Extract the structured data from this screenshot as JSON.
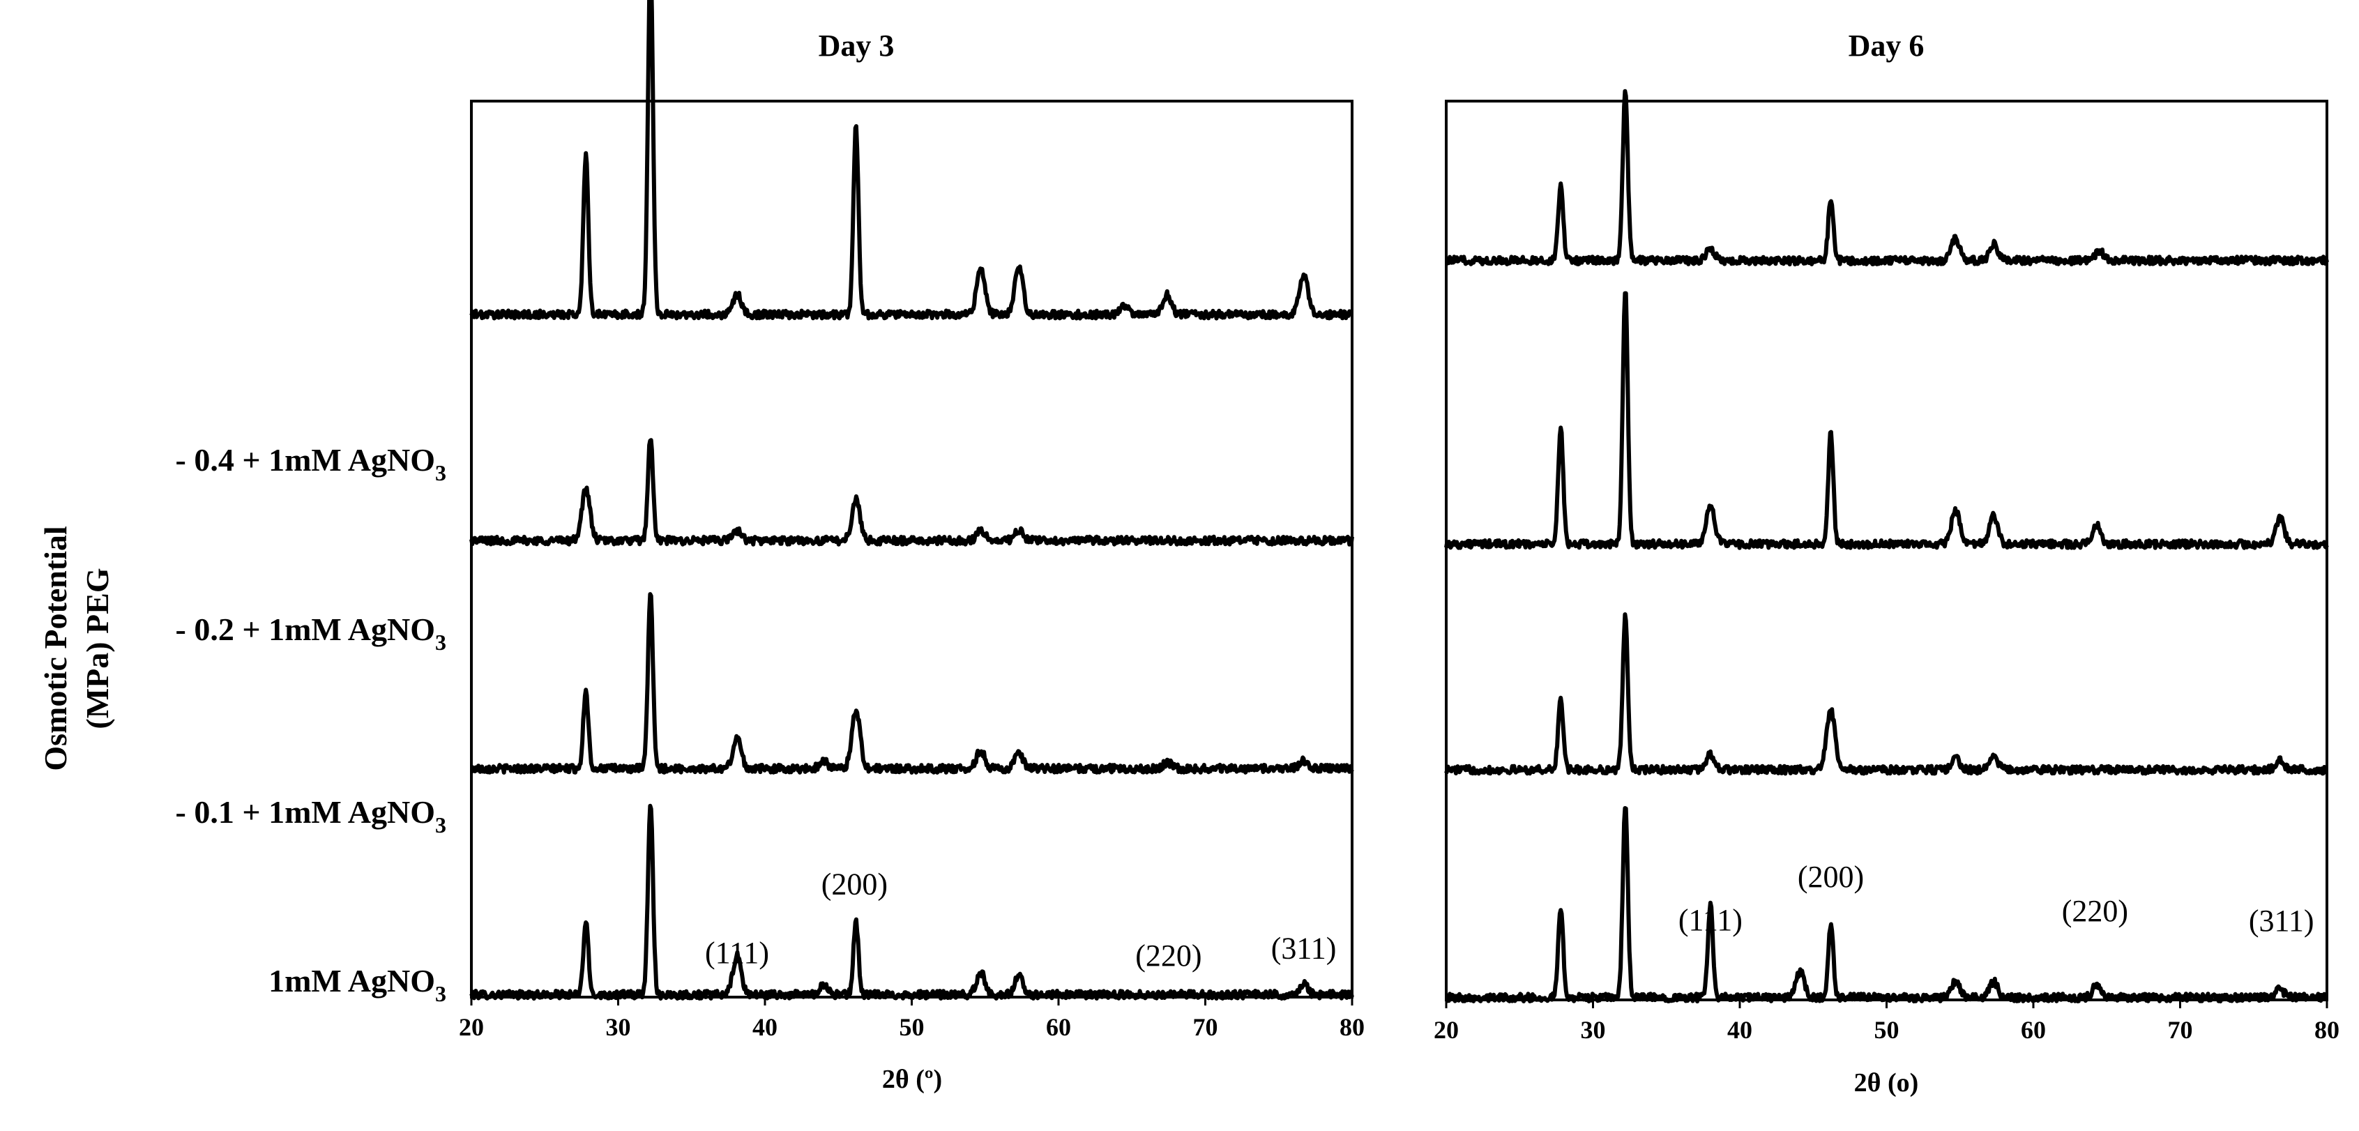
{
  "figure": {
    "ylabel": {
      "line1": "Osmotic Potential",
      "line2": "(MPa) PEG"
    },
    "row_labels": [
      {
        "pre": "1mM AgNO",
        "sub": "3"
      },
      {
        "pre": "- 0.1 + 1mM AgNO",
        "sub": "3"
      },
      {
        "pre": "- 0.2 + 1mM AgNO",
        "sub": "3"
      },
      {
        "pre": "- 0.4 + 1mM AgNO",
        "sub": "3"
      }
    ]
  },
  "chart_data": [
    {
      "type": "line",
      "title": "Day 3",
      "xlabel": "2θ (º)",
      "xlim": [
        20,
        80
      ],
      "xticks": [
        "20",
        "30",
        "40",
        "50",
        "60",
        "70",
        "80"
      ],
      "grid": false,
      "peak_labels": [
        {
          "text": "(111)",
          "x": 38.1,
          "y": 1.34
        },
        {
          "text": "(200)",
          "x": 46.1,
          "y": 4.7
        },
        {
          "text": "(220)",
          "x": 67.5,
          "y": 1.2
        },
        {
          "text": "(311)",
          "x": 76.7,
          "y": 1.55
        }
      ],
      "series": [
        {
          "baseline": 0.0,
          "peaks": [
            [
              27.8,
              3.6
            ],
            [
              32.2,
              9.5
            ],
            [
              38.1,
              1.9
            ],
            [
              44.0,
              0.5
            ],
            [
              46.2,
              3.6
            ],
            [
              54.7,
              1.1
            ],
            [
              57.3,
              0.9
            ],
            [
              76.7,
              0.5
            ]
          ]
        },
        {
          "baseline": 11.1,
          "peaks": [
            [
              27.8,
              3.9
            ],
            [
              32.2,
              8.6
            ],
            [
              38.1,
              1.5
            ],
            [
              44.0,
              0.4
            ],
            [
              46.2,
              2.9
            ],
            [
              54.7,
              0.9
            ],
            [
              57.3,
              0.7
            ],
            [
              67.4,
              0.3
            ],
            [
              76.7,
              0.4
            ]
          ]
        },
        {
          "baseline": 22.3,
          "peaks": [
            [
              27.8,
              2.5
            ],
            [
              32.2,
              5.1
            ],
            [
              38.1,
              0.5
            ],
            [
              46.2,
              2.0
            ],
            [
              54.7,
              0.5
            ],
            [
              57.3,
              0.5
            ]
          ]
        },
        {
          "baseline": 33.4,
          "peaks": [
            [
              27.8,
              7.9
            ],
            [
              32.2,
              17.5
            ],
            [
              38.1,
              1.0
            ],
            [
              46.2,
              9.3
            ],
            [
              54.7,
              2.3
            ],
            [
              57.3,
              2.3
            ],
            [
              64.5,
              0.4
            ],
            [
              67.4,
              1.0
            ],
            [
              76.7,
              2.0
            ]
          ]
        }
      ]
    },
    {
      "type": "line",
      "title": "Day 6",
      "xlabel": "2θ (o)",
      "xlim": [
        20,
        80
      ],
      "xticks": [
        "20",
        "30",
        "40",
        "50",
        "60",
        "70",
        "80"
      ],
      "grid": false,
      "peak_labels": [
        {
          "text": "(111)",
          "x": 38.0,
          "y": 3.15
        },
        {
          "text": "(200)",
          "x": 46.2,
          "y": 5.3
        },
        {
          "text": "(220)",
          "x": 64.2,
          "y": 3.6
        },
        {
          "text": "(311)",
          "x": 76.9,
          "y": 3.1
        }
      ],
      "series": [
        {
          "baseline": 0.0,
          "peaks": [
            [
              27.8,
              4.4
            ],
            [
              32.2,
              9.7
            ],
            [
              38.0,
              4.7
            ],
            [
              44.1,
              1.3
            ],
            [
              46.2,
              3.7
            ],
            [
              54.7,
              0.8
            ],
            [
              57.3,
              0.8
            ],
            [
              64.3,
              0.6
            ],
            [
              76.8,
              0.4
            ]
          ]
        },
        {
          "baseline": 11.4,
          "peaks": [
            [
              27.8,
              3.6
            ],
            [
              32.2,
              7.8
            ],
            [
              38.0,
              0.8
            ],
            [
              46.2,
              3.0
            ],
            [
              54.7,
              0.6
            ],
            [
              57.3,
              0.7
            ],
            [
              76.8,
              0.5
            ]
          ]
        },
        {
          "baseline": 22.7,
          "peaks": [
            [
              27.8,
              5.8
            ],
            [
              32.2,
              12.8
            ],
            [
              38.0,
              2.0
            ],
            [
              46.2,
              5.6
            ],
            [
              54.7,
              1.7
            ],
            [
              57.3,
              1.4
            ],
            [
              64.3,
              1.0
            ],
            [
              76.8,
              1.3
            ]
          ]
        },
        {
          "baseline": 36.9,
          "peaks": [
            [
              27.8,
              3.8
            ],
            [
              32.2,
              8.5
            ],
            [
              38.0,
              0.6
            ],
            [
              46.2,
              3.1
            ],
            [
              54.7,
              1.1
            ],
            [
              57.3,
              0.8
            ],
            [
              64.5,
              0.5
            ]
          ]
        }
      ]
    }
  ]
}
